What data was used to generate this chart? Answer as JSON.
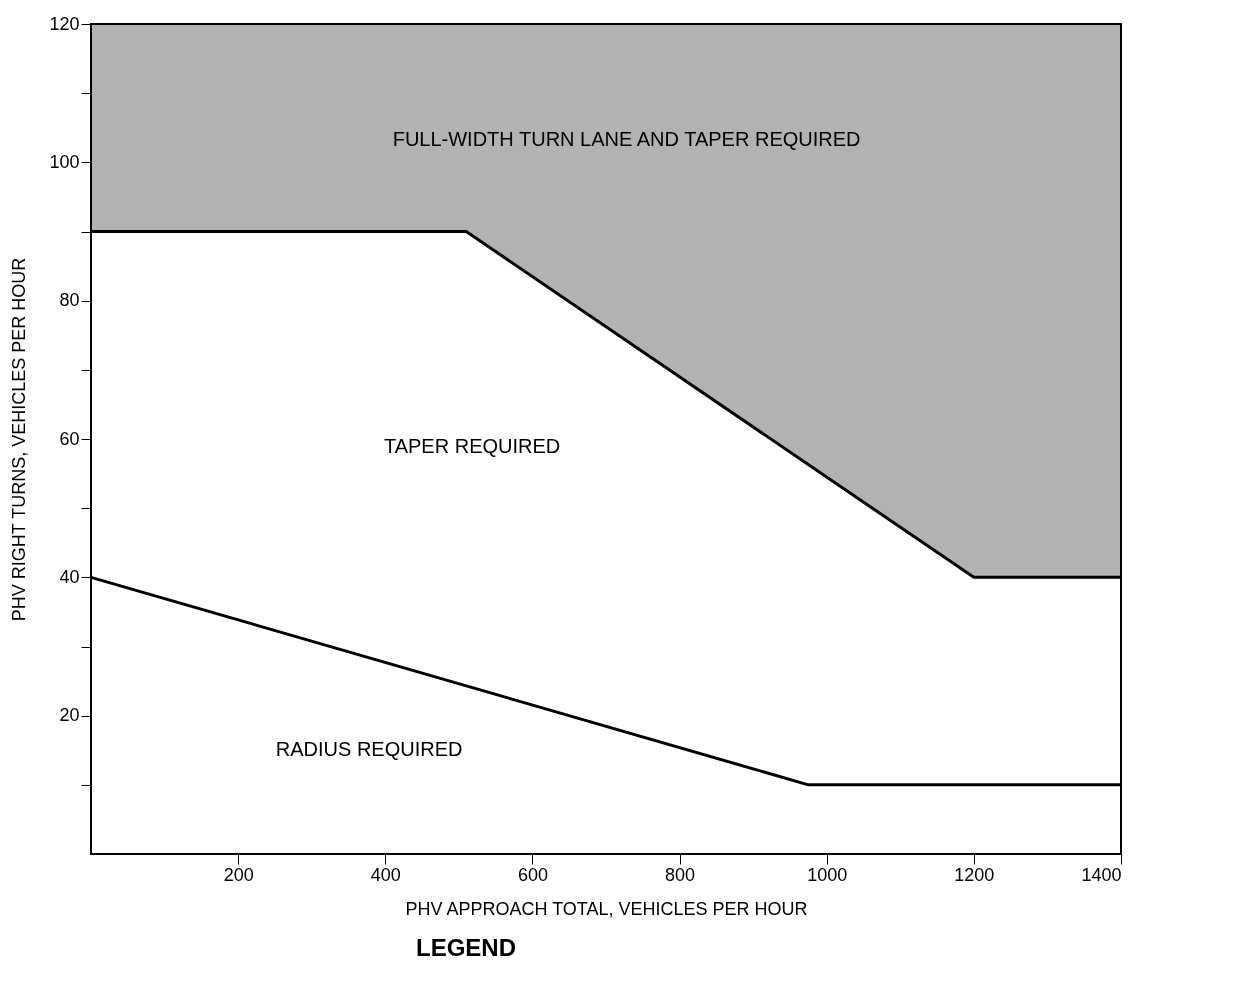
{
  "chart_data": {
    "type": "line",
    "xlabel": "PHV APPROACH TOTAL, VEHICLES PER HOUR",
    "ylabel": "PHV RIGHT TURNS, VEHICLES PER HOUR",
    "xlim": [
      0,
      1400
    ],
    "ylim": [
      0,
      120
    ],
    "xticks": [
      200,
      400,
      600,
      800,
      1000,
      1200,
      1400
    ],
    "yticks": [
      {
        "value": 10,
        "label": null
      },
      20,
      {
        "value": 30,
        "label": null
      },
      40,
      {
        "value": 50,
        "label": null
      },
      60,
      {
        "value": 70,
        "label": null
      },
      80,
      {
        "value": 90,
        "label": null
      },
      100,
      {
        "value": 110,
        "label": null
      },
      120
    ],
    "grid": false,
    "series": [
      {
        "color": "#000000",
        "x": [
          0,
          510,
          1200,
          1400
        ],
        "values": [
          90,
          90,
          40,
          40
        ],
        "lower": [
          90,
          90,
          40,
          40
        ],
        "upper": [
          120,
          120,
          120,
          120
        ]
      },
      {
        "color": "#000000",
        "x": [
          0,
          975,
          1400
        ],
        "values": [
          40,
          10,
          10
        ]
      }
    ],
    "annotations": [
      "FULL-WIDTH TURN LANE AND TAPER REQUIRED",
      "TAPER REQUIRED",
      "RADIUS REQUIRED",
      "LEGEND"
    ]
  }
}
